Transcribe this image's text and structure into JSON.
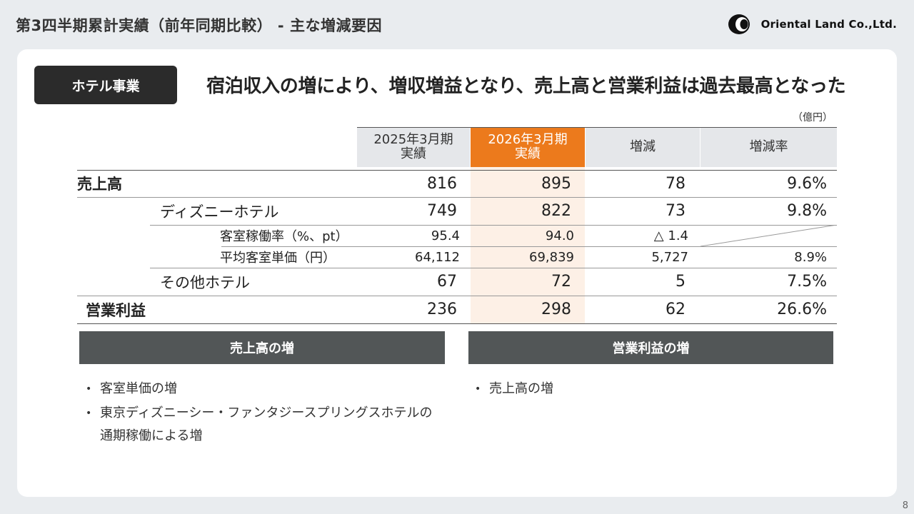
{
  "page_title": "第3四半期累計実績（前年同期比較） - 主な増減要因",
  "logo_text": "Oriental Land Co.,Ltd.",
  "segment_badge": "ホテル事業",
  "headline": "宿泊収入の増により、増収増益となり、売上高と営業利益は過去最高となった",
  "unit": "（億円）",
  "table": {
    "headers": [
      {
        "line1": "2025年3月期",
        "line2": "実績"
      },
      {
        "line1": "2026年3月期",
        "line2": "実績"
      },
      {
        "line1": "増減",
        "line2": ""
      },
      {
        "line1": "増減率",
        "line2": ""
      }
    ],
    "rows": [
      {
        "label": "売上高",
        "v2025": "816",
        "v2026": "895",
        "diff": "78",
        "rate": "9.6%"
      },
      {
        "label": "ディズニーホテル",
        "v2025": "749",
        "v2026": "822",
        "diff": "73",
        "rate": "9.8%"
      },
      {
        "label": "客室稼働率（%、pt）",
        "v2025": "95.4",
        "v2026": "94.0",
        "diff": "△ 1.4",
        "rate": ""
      },
      {
        "label": "平均客室単価（円）",
        "v2025": "64,112",
        "v2026": "69,839",
        "diff": "5,727",
        "rate": "8.9%"
      },
      {
        "label": "その他ホテル",
        "v2025": "67",
        "v2026": "72",
        "diff": "5",
        "rate": "7.5%"
      },
      {
        "label": "営業利益",
        "v2025": "236",
        "v2026": "298",
        "diff": "62",
        "rate": "26.6%"
      }
    ]
  },
  "sections": {
    "sales": {
      "title": "売上高の増",
      "bullets": [
        "客室単価の増",
        "東京ディズニーシー・ファンタジースプリングスホテルの",
        "通期稼働による増"
      ]
    },
    "profit": {
      "title": "営業利益の増",
      "bullets": [
        "売上高の増"
      ]
    }
  },
  "page_number": "8",
  "colors": {
    "accent": "#ec7a1c",
    "dark_badge": "#2b2b2b",
    "section_bar": "#525657",
    "highlight_column": "#fdf0e6",
    "background": "#e9ecef"
  }
}
